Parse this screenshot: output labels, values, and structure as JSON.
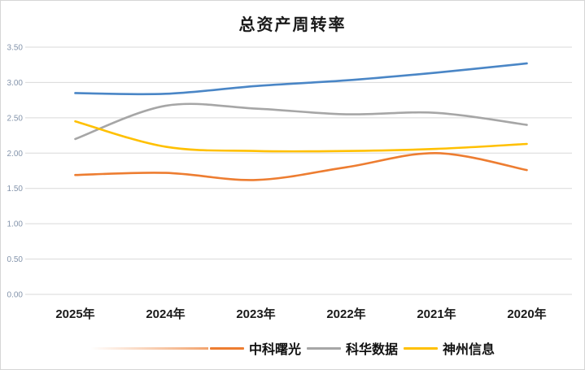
{
  "chart_data": {
    "type": "line",
    "title": "总资产周转率",
    "categories": [
      "2025年",
      "2024年",
      "2023年",
      "2022年",
      "2021年",
      "2020年"
    ],
    "series": [
      {
        "key": "blue-series",
        "name": "",
        "color": "#4a86c6",
        "in_legend": false,
        "values": [
          2.85,
          2.84,
          2.95,
          3.03,
          3.14,
          3.27
        ]
      },
      {
        "key": "kehua-data",
        "name": "科华数据",
        "color": "#a6a6a6",
        "in_legend": true,
        "values": [
          2.2,
          2.67,
          2.63,
          2.55,
          2.57,
          2.4
        ]
      },
      {
        "key": "zhongke-shuguang",
        "name": "中科曙光",
        "color": "#ed7d31",
        "in_legend": true,
        "values": [
          1.69,
          1.72,
          1.62,
          1.8,
          2.0,
          1.76
        ]
      },
      {
        "key": "shenzhou-info",
        "name": "神州信息",
        "color": "#ffc000",
        "in_legend": true,
        "values": [
          2.45,
          2.09,
          2.03,
          2.03,
          2.06,
          2.13
        ]
      }
    ],
    "legend": [
      {
        "key": "zhongke-shuguang",
        "label": "中科曙光",
        "color": "#ed7d31"
      },
      {
        "key": "kehua-data",
        "label": "科华数据",
        "color": "#a6a6a6"
      },
      {
        "key": "shenzhou-info",
        "label": "神州信息",
        "color": "#ffc000"
      }
    ],
    "ylim": [
      0,
      3.5
    ],
    "yticks": [
      {
        "value": 3.5,
        "label": "3.50"
      },
      {
        "value": 3.0,
        "label": "3.00"
      },
      {
        "value": 2.5,
        "label": "2.50"
      },
      {
        "value": 2.0,
        "label": "2.00"
      },
      {
        "value": 1.5,
        "label": "1.50"
      },
      {
        "value": 1.0,
        "label": "1.00"
      },
      {
        "value": 0.5,
        "label": "0.50"
      },
      {
        "value": 0.0,
        "label": "0.00"
      }
    ],
    "xlabel": "",
    "ylabel": "",
    "grid": "horizontal",
    "legend_position": "bottom"
  },
  "colors": {
    "gridline": "#d9d9d9",
    "axis_label": "#8494ab",
    "x_label": "#1a1a1a",
    "background": "#ffffff",
    "frame_border": "#d6d6d6"
  }
}
